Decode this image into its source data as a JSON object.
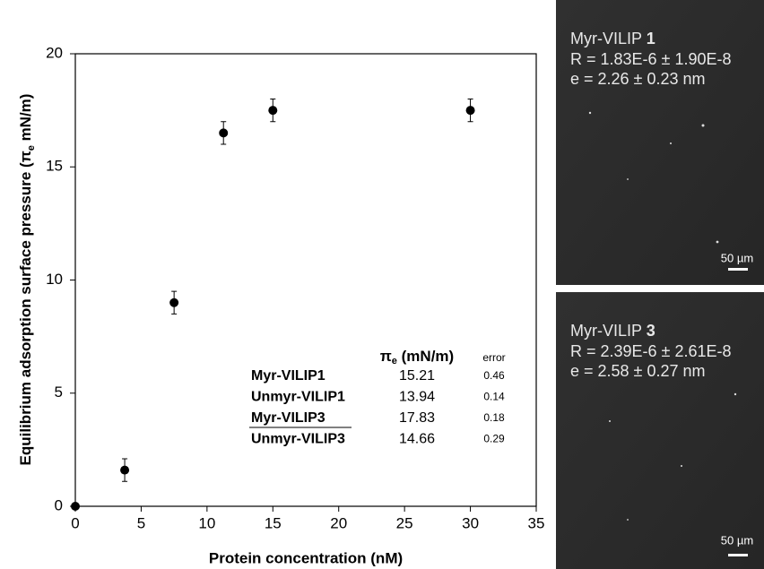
{
  "chart_data": {
    "type": "scatter",
    "xlabel": "Protein concentration (nM)",
    "ylabel_parts": [
      "Equilibrium adsorption surface pressure (π",
      "e",
      " mN/m)"
    ],
    "x": [
      0,
      3.75,
      7.5,
      11.25,
      15,
      30
    ],
    "values": [
      0,
      1.6,
      9,
      16.5,
      17.5,
      17.5
    ],
    "errors": [
      null,
      0.5,
      0.5,
      0.5,
      0.5,
      0.5
    ],
    "xlim": [
      0,
      35
    ],
    "ylim": [
      0,
      20
    ],
    "xticks": [
      0,
      5,
      10,
      15,
      20,
      25,
      30,
      35
    ],
    "yticks": [
      0,
      5,
      10,
      15,
      20
    ],
    "color": "#000000"
  },
  "table": {
    "header": {
      "symbol": "π",
      "sub": "e",
      "unit": " (mN/m)",
      "error": "error"
    },
    "rows": [
      [
        "Myr-VILIP1",
        15.21,
        0.46
      ],
      [
        "Unmyr-VILIP1",
        13.94,
        0.14
      ],
      [
        "Myr-VILIP3",
        17.83,
        0.18
      ],
      [
        "Unmyr-VILIP3",
        14.66,
        0.29
      ]
    ],
    "underlined_row": 2
  },
  "panels": [
    {
      "name": "Myr-VILIP ",
      "number": "1",
      "r": "R = 1.83E-6 ± 1.90E-8",
      "e": "e = 2.26 ± 0.23 nm",
      "scale": "50 µm"
    },
    {
      "name": "Myr-VILIP ",
      "number": "3",
      "r": "R = 2.39E-6 ± 2.61E-8",
      "e": "e = 2.58 ± 0.27 nm",
      "scale": "50 µm"
    }
  ]
}
